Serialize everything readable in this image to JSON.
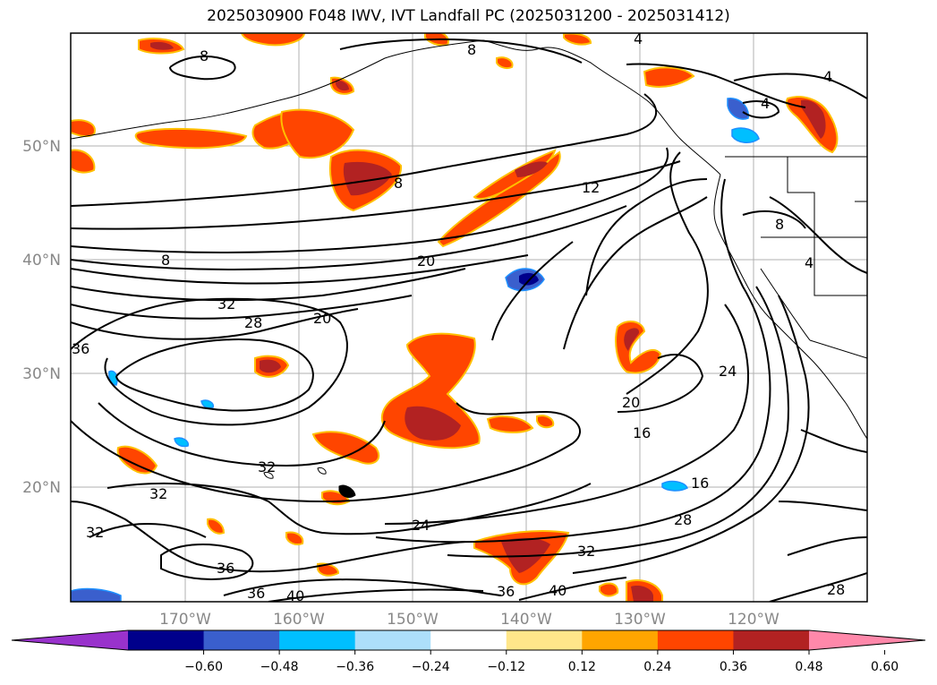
{
  "title": "2025030900 F048 IWV, IVT Landfall PC (2025031200 - 2025031412)",
  "lat_labels": [
    "50°N",
    "40°N",
    "30°N",
    "20°N"
  ],
  "lon_labels": [
    "170°W",
    "160°W",
    "150°W",
    "140°W",
    "130°W",
    "120°W"
  ],
  "contour_labels": [
    "8",
    "8",
    "8",
    "8",
    "4",
    "4",
    "4",
    "4",
    "8",
    "12",
    "20",
    "20",
    "32",
    "28",
    "36",
    "32",
    "32",
    "32",
    "24",
    "20",
    "16",
    "16",
    "24",
    "28",
    "32",
    "36",
    "36",
    "40",
    "36",
    "40",
    "28"
  ],
  "colorbar": {
    "ticks": [
      "−0.60",
      "−0.48",
      "−0.36",
      "−0.24",
      "−0.12",
      "0.12",
      "0.24",
      "0.36",
      "0.48",
      "0.60"
    ],
    "colors": [
      "#9932CC",
      "#00008B",
      "#3A5FCD",
      "#00BFFF",
      "#ADDFFA",
      "#FFFFFF",
      "#FFE68A",
      "#FFA500",
      "#FF4500",
      "#B22222",
      "#FF88AA"
    ]
  }
}
